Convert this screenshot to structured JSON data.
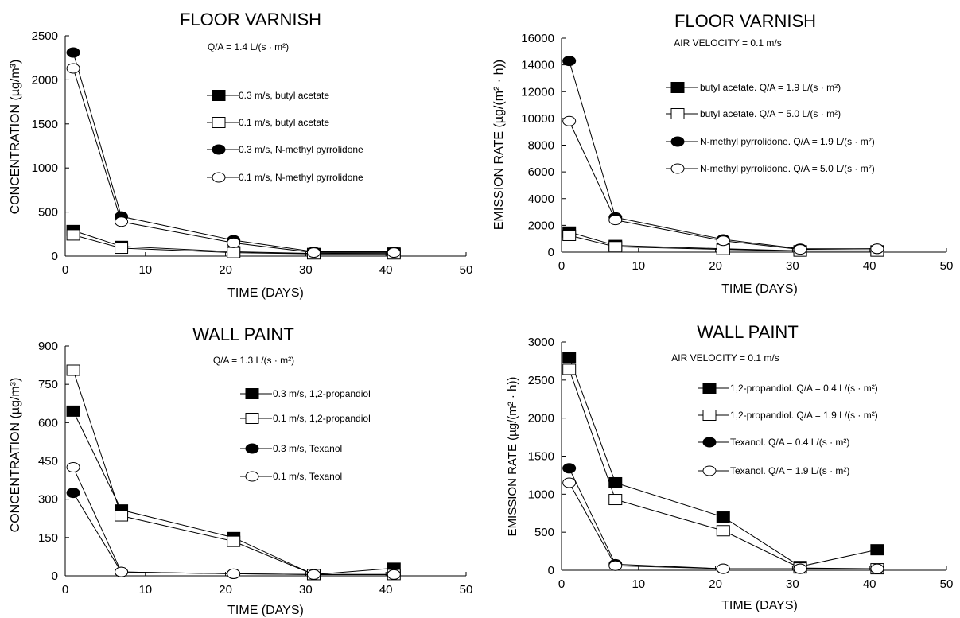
{
  "charts": [
    {
      "title": "FLOOR VARNISH",
      "subtitle": "Q/A = 1.4 L/(s · m²)",
      "xlabel": "TIME (DAYS)",
      "ylabel": "CONCENTRATION (µg/m³)",
      "xticks": [
        "0",
        "10",
        "20",
        "30",
        "40",
        "50"
      ],
      "yticks": [
        "0",
        "500",
        "1000",
        "1500",
        "2000",
        "2500"
      ]
    },
    {
      "title": "FLOOR VARNISH",
      "subtitle": "AIR VELOCITY = 0.1 m/s",
      "xlabel": "TIME (DAYS)",
      "ylabel": "EMISSION RATE (µg/(m² · h))",
      "xticks": [
        "0",
        "10",
        "20",
        "30",
        "40",
        "50"
      ],
      "yticks": [
        "0",
        "2000",
        "4000",
        "6000",
        "8000",
        "10000",
        "12000",
        "14000",
        "16000"
      ]
    },
    {
      "title": "WALL PAINT",
      "subtitle": "Q/A = 1.3 L/(s · m²)",
      "xlabel": "TIME (DAYS)",
      "ylabel": "CONCENTRATION (µg/m³)",
      "xticks": [
        "0",
        "10",
        "20",
        "30",
        "40",
        "50"
      ],
      "yticks": [
        "0",
        "150",
        "300",
        "450",
        "600",
        "750",
        "900"
      ]
    },
    {
      "title": "WALL PAINT",
      "subtitle": "AIR VELOCITY = 0.1 m/s",
      "xlabel": "TIME (DAYS)",
      "ylabel": "EMISSION RATE (µg/(m² · h))",
      "xticks": [
        "0",
        "10",
        "20",
        "30",
        "40",
        "50"
      ],
      "yticks": [
        "0",
        "500",
        "1000",
        "1500",
        "2000",
        "2500",
        "3000"
      ]
    }
  ],
  "chart_data": [
    {
      "type": "line",
      "title": "FLOOR VARNISH",
      "subtitle": "Q/A = 1.4 L/(s · m²)",
      "xlabel": "TIME (DAYS)",
      "ylabel": "CONCENTRATION (µg/m³)",
      "xlim": [
        0,
        50
      ],
      "ylim": [
        0,
        2500
      ],
      "grid": false,
      "legend_position": "right",
      "series": [
        {
          "name": "0.3 m/s, butyl acetate",
          "marker": "square-filled",
          "x": [
            1,
            7,
            21,
            31,
            41
          ],
          "y": [
            290,
            110,
            50,
            30,
            35
          ]
        },
        {
          "name": "0.1 m/s, butyl  acetate",
          "marker": "square-open",
          "x": [
            1,
            7,
            21,
            31,
            41
          ],
          "y": [
            240,
            90,
            40,
            25,
            25
          ]
        },
        {
          "name": "0.3 m/s, N-methyl pyrrolidone",
          "marker": "circle-filled",
          "x": [
            1,
            7,
            21,
            31,
            41
          ],
          "y": [
            2310,
            450,
            180,
            50,
            50
          ]
        },
        {
          "name": "0.1 m/s, N-methyl pyrrolidone",
          "marker": "circle-open",
          "x": [
            1,
            7,
            21,
            31,
            41
          ],
          "y": [
            2130,
            390,
            150,
            40,
            40
          ]
        }
      ]
    },
    {
      "type": "line",
      "title": "FLOOR VARNISH",
      "subtitle": "AIR VELOCITY = 0.1 m/s",
      "xlabel": "TIME (DAYS)",
      "ylabel": "EMISSION RATE (µg/(m² · h))",
      "xlim": [
        0,
        50
      ],
      "ylim": [
        0,
        16000
      ],
      "grid": false,
      "legend_position": "right",
      "series": [
        {
          "name": "butyl acetate. Q/A = 1.9 L/(s · m²)",
          "marker": "square-filled",
          "x": [
            1,
            7,
            21,
            31,
            41
          ],
          "y": [
            1500,
            500,
            250,
            100,
            100
          ]
        },
        {
          "name": "butyl acetate. Q/A = 5.0 L/(s · m²)",
          "marker": "square-open",
          "x": [
            1,
            7,
            21,
            31,
            41
          ],
          "y": [
            1250,
            400,
            200,
            80,
            80
          ]
        },
        {
          "name": "N-methyl pyrrolidone. Q/A = 1.9 L/(s · m²)",
          "marker": "circle-filled",
          "x": [
            1,
            7,
            21,
            31,
            41
          ],
          "y": [
            14300,
            2600,
            950,
            250,
            250
          ]
        },
        {
          "name": "N-methyl pyrrolidone. Q/A = 5.0 L/(s · m²)",
          "marker": "circle-open",
          "x": [
            1,
            7,
            21,
            31,
            41
          ],
          "y": [
            9800,
            2400,
            850,
            200,
            250
          ]
        }
      ]
    },
    {
      "type": "line",
      "title": "WALL PAINT",
      "subtitle": "Q/A = 1.3 L/(s · m²)",
      "xlabel": "TIME (DAYS)",
      "ylabel": "CONCENTRATION (µg/m³)",
      "xlim": [
        0,
        50
      ],
      "ylim": [
        0,
        900
      ],
      "grid": false,
      "legend_position": "right",
      "series": [
        {
          "name": "0.3 m/s, 1,2-propandiol",
          "marker": "square-filled",
          "x": [
            1,
            7,
            21,
            31,
            41
          ],
          "y": [
            645,
            258,
            150,
            5,
            30
          ]
        },
        {
          "name": "0.1 m/s, 1,2-propandiol",
          "marker": "square-open",
          "x": [
            1,
            7,
            21,
            31,
            41
          ],
          "y": [
            805,
            235,
            135,
            5,
            5
          ]
        },
        {
          "name": "0.3 m/s, Texanol",
          "marker": "circle-filled",
          "x": [
            1,
            7,
            21,
            31,
            41
          ],
          "y": [
            325,
            15,
            8,
            5,
            5
          ]
        },
        {
          "name": "0.1 m/s, Texanol",
          "marker": "circle-open",
          "x": [
            1,
            7,
            21,
            31,
            41
          ],
          "y": [
            425,
            15,
            8,
            5,
            5
          ]
        }
      ]
    },
    {
      "type": "line",
      "title": "WALL PAINT",
      "subtitle": "AIR VELOCITY = 0.1 m/s",
      "xlabel": "TIME (DAYS)",
      "ylabel": "EMISSION RATE (µg/(m² · h))",
      "xlim": [
        0,
        50
      ],
      "ylim": [
        0,
        3000
      ],
      "grid": false,
      "legend_position": "right",
      "series": [
        {
          "name": "1,2-propandiol. Q/A = 0.4 L/(s · m²)",
          "marker": "square-filled",
          "x": [
            1,
            7,
            21,
            31,
            41
          ],
          "y": [
            2800,
            1150,
            700,
            50,
            270
          ]
        },
        {
          "name": "1,2-propandiol. Q/A = 1.9 L/(s · m²)",
          "marker": "square-open",
          "x": [
            1,
            7,
            21,
            31,
            41
          ],
          "y": [
            2640,
            930,
            520,
            30,
            20
          ]
        },
        {
          "name": "Texanol. Q/A = 0.4 L/(s · m²)",
          "marker": "circle-filled",
          "x": [
            1,
            7,
            21,
            31,
            41
          ],
          "y": [
            1340,
            80,
            20,
            20,
            20
          ]
        },
        {
          "name": "Texanol. Q/A = 1.9 L/(s · m²)",
          "marker": "circle-open",
          "x": [
            1,
            7,
            21,
            31,
            41
          ],
          "y": [
            1150,
            60,
            20,
            20,
            20
          ]
        }
      ]
    }
  ]
}
